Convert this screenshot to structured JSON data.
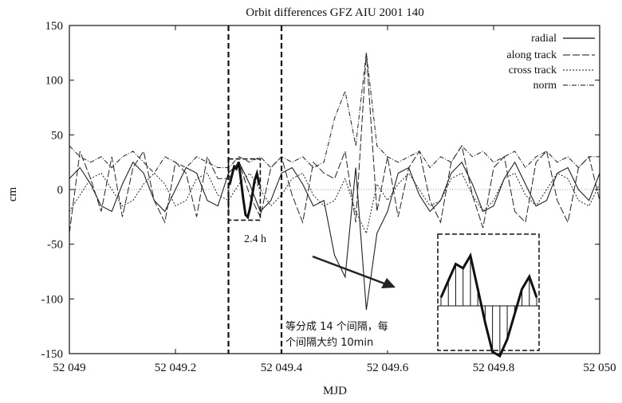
{
  "chart_data": {
    "type": "line",
    "title": "Orbit differences GFZ AIU 2001 140",
    "xlabel": "MJD",
    "ylabel": "cm",
    "xlim": [
      52049.0,
      52050.0
    ],
    "ylim": [
      -150,
      150
    ],
    "x_ticks": [
      52049.0,
      52049.2,
      52049.4,
      52049.6,
      52049.8,
      52050.0
    ],
    "x_tick_labels": [
      "52 049",
      "52 049.2",
      "52 049.4",
      "52 049.6",
      "52 049.8",
      "52 050"
    ],
    "y_ticks": [
      -150,
      -100,
      -50,
      0,
      50,
      100,
      150
    ],
    "y_tick_labels": [
      "-150",
      "-100",
      "-50",
      "0",
      "50",
      "100",
      "150"
    ],
    "legend_position": "top-right",
    "series": [
      {
        "name": "radial",
        "style": "solid",
        "amplitude_cm": 25,
        "x": [
          52049.0,
          52049.02,
          52049.04,
          52049.06,
          52049.08,
          52049.1,
          52049.12,
          52049.14,
          52049.16,
          52049.18,
          52049.2,
          52049.22,
          52049.24,
          52049.26,
          52049.28,
          52049.3,
          52049.32,
          52049.34,
          52049.36,
          52049.38,
          52049.4,
          52049.42,
          52049.44,
          52049.46,
          52049.48,
          52049.5,
          52049.52,
          52049.54,
          52049.56,
          52049.58,
          52049.6,
          52049.62,
          52049.64,
          52049.66,
          52049.68,
          52049.7,
          52049.72,
          52049.74,
          52049.76,
          52049.78,
          52049.8,
          52049.82,
          52049.84,
          52049.86,
          52049.88,
          52049.9,
          52049.92,
          52049.94,
          52049.96,
          52049.98,
          52050.0
        ],
        "y": [
          10,
          20,
          5,
          -15,
          -20,
          5,
          25,
          15,
          -10,
          -20,
          0,
          20,
          15,
          -10,
          -15,
          15,
          25,
          5,
          -20,
          -10,
          15,
          20,
          5,
          -15,
          -10,
          -60,
          -80,
          20,
          -110,
          -40,
          -20,
          15,
          20,
          -5,
          -20,
          -10,
          15,
          25,
          5,
          -20,
          -15,
          10,
          25,
          5,
          -15,
          -10,
          15,
          20,
          0,
          -10,
          15
        ]
      },
      {
        "name": "along track",
        "style": "long-dash",
        "amplitude_cm": 30,
        "x": [
          52049.0,
          52049.02,
          52049.04,
          52049.06,
          52049.08,
          52049.1,
          52049.12,
          52049.14,
          52049.16,
          52049.18,
          52049.2,
          52049.22,
          52049.24,
          52049.26,
          52049.28,
          52049.3,
          52049.32,
          52049.34,
          52049.36,
          52049.38,
          52049.4,
          52049.42,
          52049.44,
          52049.46,
          52049.48,
          52049.5,
          52049.52,
          52049.54,
          52049.56,
          52049.58,
          52049.6,
          52049.62,
          52049.64,
          52049.66,
          52049.68,
          52049.7,
          52049.72,
          52049.74,
          52049.76,
          52049.78,
          52049.8,
          52049.82,
          52049.84,
          52049.86,
          52049.88,
          52049.9,
          52049.92,
          52049.94,
          52049.96,
          52049.98,
          52050.0
        ],
        "y": [
          -40,
          35,
          10,
          -20,
          30,
          -25,
          20,
          35,
          -10,
          -30,
          25,
          15,
          -25,
          30,
          10,
          10,
          25,
          -5,
          -25,
          20,
          30,
          -5,
          -30,
          25,
          15,
          10,
          35,
          -30,
          125,
          -20,
          30,
          -25,
          20,
          35,
          -10,
          -30,
          25,
          40,
          -5,
          -35,
          20,
          30,
          -20,
          -30,
          25,
          35,
          -10,
          -30,
          20,
          30,
          -10
        ]
      },
      {
        "name": "cross track",
        "style": "short-dash",
        "amplitude_cm": 15,
        "x": [
          52049.0,
          52049.02,
          52049.04,
          52049.06,
          52049.08,
          52049.1,
          52049.12,
          52049.14,
          52049.16,
          52049.18,
          52049.2,
          52049.22,
          52049.24,
          52049.26,
          52049.28,
          52049.3,
          52049.32,
          52049.34,
          52049.36,
          52049.38,
          52049.4,
          52049.42,
          52049.44,
          52049.46,
          52049.48,
          52049.5,
          52049.52,
          52049.54,
          52049.56,
          52049.58,
          52049.6,
          52049.62,
          52049.64,
          52049.66,
          52049.68,
          52049.7,
          52049.72,
          52049.74,
          52049.76,
          52049.78,
          52049.8,
          52049.82,
          52049.84,
          52049.86,
          52049.88,
          52049.9,
          52049.92,
          52049.94,
          52049.96,
          52049.98,
          52050.0
        ],
        "y": [
          -20,
          -5,
          10,
          15,
          0,
          -15,
          -10,
          5,
          15,
          5,
          -15,
          -10,
          10,
          15,
          -5,
          -10,
          5,
          15,
          0,
          -15,
          -5,
          10,
          15,
          -5,
          -15,
          -10,
          10,
          -20,
          -40,
          5,
          -10,
          5,
          15,
          0,
          -15,
          -10,
          10,
          15,
          -5,
          -20,
          -10,
          10,
          15,
          -5,
          -15,
          0,
          15,
          10,
          -10,
          -15,
          5
        ]
      },
      {
        "name": "norm",
        "style": "dash-dot",
        "amplitude_cm": 30,
        "x": [
          52049.0,
          52049.02,
          52049.04,
          52049.06,
          52049.08,
          52049.1,
          52049.12,
          52049.14,
          52049.16,
          52049.18,
          52049.2,
          52049.22,
          52049.24,
          52049.26,
          52049.28,
          52049.3,
          52049.32,
          52049.34,
          52049.36,
          52049.38,
          52049.4,
          52049.42,
          52049.44,
          52049.46,
          52049.48,
          52049.5,
          52049.52,
          52049.54,
          52049.56,
          52049.58,
          52049.6,
          52049.62,
          52049.64,
          52049.66,
          52049.68,
          52049.7,
          52049.72,
          52049.74,
          52049.76,
          52049.78,
          52049.8,
          52049.82,
          52049.84,
          52049.86,
          52049.88,
          52049.9,
          52049.92,
          52049.94,
          52049.96,
          52049.98,
          52050.0
        ],
        "y": [
          40,
          30,
          25,
          30,
          20,
          30,
          35,
          25,
          15,
          30,
          25,
          20,
          30,
          25,
          20,
          20,
          30,
          25,
          30,
          20,
          30,
          25,
          30,
          20,
          25,
          65,
          90,
          40,
          125,
          40,
          30,
          25,
          30,
          35,
          20,
          30,
          25,
          40,
          30,
          35,
          25,
          30,
          35,
          20,
          30,
          35,
          25,
          30,
          20,
          30,
          30
        ]
      }
    ],
    "highlight_window": {
      "x_range": [
        52049.3,
        52049.4
      ],
      "label": "2.4 h"
    },
    "inset_box": {
      "x_range": [
        52049.3,
        52049.36
      ],
      "y_range": [
        -28,
        28
      ]
    },
    "annotation": {
      "line1": "等分成 14 个间隔，每",
      "line2": "个间隔大约 10min"
    },
    "zoom_inset_values": [
      10,
      30,
      50,
      45,
      60,
      20,
      -20,
      -55,
      -60,
      -40,
      -10,
      20,
      35,
      10
    ]
  }
}
